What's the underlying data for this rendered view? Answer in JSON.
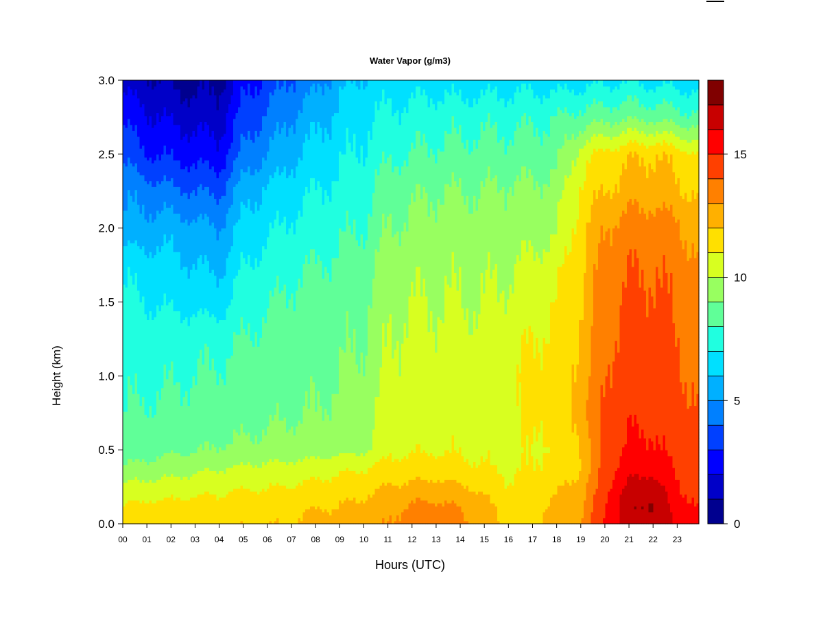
{
  "chart_data": {
    "type": "heatmap",
    "title": "Water Vapor (g/m3)",
    "xlabel": "Hours (UTC)",
    "ylabel": "Height (km)",
    "xlim": [
      0,
      23.9
    ],
    "ylim": [
      0,
      3.0
    ],
    "x_ticks": [
      "00",
      "01",
      "02",
      "03",
      "04",
      "05",
      "06",
      "07",
      "08",
      "09",
      "10",
      "11",
      "12",
      "13",
      "14",
      "15",
      "16",
      "17",
      "18",
      "19",
      "20",
      "21",
      "22",
      "23"
    ],
    "y_ticks": [
      "0.0",
      "0.5",
      "1.0",
      "1.5",
      "2.0",
      "2.5",
      "3.0"
    ],
    "colorbar": {
      "min": 0,
      "max": 18,
      "ticks": [
        "0",
        "5",
        "10",
        "15"
      ],
      "levels": [
        0,
        1,
        2,
        3,
        4,
        5,
        6,
        7,
        8,
        9,
        10,
        11,
        12,
        13,
        14,
        15,
        16,
        17,
        18
      ],
      "colors": [
        "#00008F",
        "#0000C8",
        "#0000FF",
        "#0040FF",
        "#0080FF",
        "#00B0FF",
        "#00E0FF",
        "#20FFE0",
        "#60FF98",
        "#98FF60",
        "#D8FF20",
        "#FFE000",
        "#FFB000",
        "#FF8000",
        "#FF4000",
        "#FF0000",
        "#C80000",
        "#800000"
      ]
    },
    "grid": {
      "hours": [
        0,
        1,
        2,
        3,
        4,
        5,
        6,
        7,
        8,
        9,
        10,
        11,
        12,
        13,
        14,
        15,
        16,
        17,
        18,
        19,
        20,
        21,
        22,
        23,
        23.9
      ],
      "heights": [
        0.0,
        0.1,
        0.2,
        0.3,
        0.4,
        0.5,
        0.75,
        1.0,
        1.25,
        1.5,
        1.75,
        2.0,
        2.25,
        2.5,
        2.75,
        3.0
      ],
      "values": [
        [
          11.8,
          11.8,
          11.8,
          11.8,
          11.8,
          11.9,
          11.9,
          12.0,
          12.3,
          12.4,
          12.6,
          13.0,
          13.4,
          13.5,
          13.3,
          12.6,
          11.8,
          11.9,
          12.4,
          13.0,
          15.2,
          16.5,
          16.8,
          15.6,
          15.2
        ],
        [
          11.2,
          11.4,
          11.4,
          11.5,
          11.5,
          11.6,
          11.7,
          11.8,
          12.0,
          12.1,
          12.3,
          12.8,
          13.2,
          13.3,
          13.0,
          12.3,
          11.6,
          11.8,
          12.3,
          12.9,
          15.0,
          16.8,
          17.2,
          15.4,
          15.0
        ],
        [
          10.5,
          10.7,
          10.8,
          10.9,
          11.0,
          11.2,
          11.2,
          11.3,
          11.6,
          11.7,
          11.9,
          12.3,
          12.7,
          12.8,
          12.5,
          12.0,
          11.2,
          11.5,
          12.0,
          12.6,
          14.8,
          16.6,
          17.0,
          15.2,
          14.8
        ],
        [
          9.8,
          10.0,
          10.1,
          10.3,
          10.4,
          10.6,
          10.7,
          10.8,
          11.0,
          11.2,
          11.4,
          11.8,
          11.9,
          12.0,
          11.8,
          11.5,
          11.0,
          11.2,
          11.6,
          12.2,
          14.6,
          16.0,
          16.2,
          15.0,
          14.6
        ],
        [
          9.0,
          9.2,
          9.4,
          9.6,
          9.8,
          10.0,
          10.1,
          10.2,
          10.4,
          10.6,
          10.8,
          11.2,
          11.3,
          11.4,
          11.2,
          11.0,
          10.8,
          11.0,
          11.3,
          12.0,
          14.4,
          15.6,
          15.6,
          14.8,
          14.4
        ],
        [
          8.4,
          8.6,
          8.8,
          8.9,
          9.1,
          9.2,
          9.3,
          9.4,
          9.5,
          9.6,
          9.8,
          10.8,
          10.9,
          10.9,
          10.9,
          10.8,
          10.7,
          10.9,
          11.2,
          12.2,
          14.2,
          15.2,
          15.2,
          14.6,
          14.2
        ],
        [
          8.0,
          8.1,
          8.2,
          8.3,
          8.5,
          8.6,
          8.8,
          8.9,
          9.0,
          9.2,
          9.5,
          10.4,
          10.5,
          10.6,
          10.6,
          10.5,
          10.7,
          11.2,
          11.4,
          12.5,
          14.2,
          14.8,
          14.8,
          14.4,
          14.0
        ],
        [
          7.8,
          7.8,
          7.9,
          8.0,
          8.1,
          8.3,
          8.5,
          8.7,
          8.8,
          9.0,
          9.2,
          10.2,
          10.3,
          10.4,
          10.5,
          10.4,
          10.8,
          11.2,
          11.4,
          12.4,
          14.0,
          14.6,
          14.6,
          14.2,
          13.8
        ],
        [
          7.5,
          7.5,
          7.6,
          7.7,
          7.8,
          8.0,
          8.3,
          8.5,
          8.6,
          8.8,
          9.0,
          10.0,
          10.2,
          10.2,
          10.3,
          10.2,
          10.6,
          11.0,
          11.2,
          12.2,
          13.8,
          14.4,
          14.4,
          14.0,
          13.6
        ],
        [
          7.2,
          7.0,
          6.8,
          6.6,
          6.5,
          7.6,
          7.9,
          8.2,
          8.4,
          8.6,
          8.8,
          9.8,
          10.0,
          10.0,
          10.0,
          10.0,
          10.2,
          10.6,
          11.0,
          12.0,
          13.6,
          14.2,
          14.2,
          13.8,
          13.4
        ],
        [
          6.8,
          6.5,
          6.3,
          6.0,
          5.8,
          7.0,
          7.4,
          7.8,
          8.0,
          8.2,
          8.5,
          9.5,
          9.7,
          9.8,
          9.8,
          9.8,
          9.9,
          10.2,
          10.6,
          11.8,
          13.4,
          13.9,
          14.0,
          13.6,
          13.0
        ],
        [
          5.2,
          5.4,
          5.6,
          5.3,
          5.0,
          6.3,
          6.8,
          7.2,
          7.5,
          7.8,
          8.0,
          9.0,
          9.2,
          9.4,
          9.5,
          9.4,
          9.5,
          9.6,
          9.8,
          11.6,
          13.0,
          13.5,
          13.6,
          13.2,
          12.6
        ],
        [
          4.8,
          4.6,
          4.2,
          4.0,
          3.8,
          5.6,
          6.2,
          6.6,
          7.0,
          7.3,
          7.6,
          8.6,
          8.8,
          9.0,
          9.0,
          9.0,
          9.2,
          9.2,
          9.4,
          11.2,
          12.0,
          12.5,
          12.6,
          12.2,
          11.8
        ],
        [
          3.8,
          3.0,
          2.8,
          2.6,
          2.4,
          4.2,
          5.0,
          5.8,
          6.3,
          6.8,
          7.2,
          7.8,
          8.0,
          8.2,
          8.3,
          8.4,
          8.4,
          8.5,
          8.6,
          10.5,
          11.4,
          11.8,
          12.0,
          11.6,
          11.0
        ],
        [
          2.8,
          2.2,
          1.8,
          1.6,
          1.5,
          3.4,
          4.2,
          5.0,
          5.7,
          6.3,
          6.8,
          7.2,
          7.4,
          7.6,
          7.6,
          7.7,
          7.7,
          7.8,
          8.0,
          8.4,
          8.6,
          8.8,
          8.7,
          8.4,
          8.2
        ],
        [
          1.6,
          1.2,
          0.8,
          0.6,
          0.8,
          2.6,
          3.3,
          4.1,
          4.6,
          5.6,
          6.2,
          6.5,
          6.5,
          6.6,
          6.4,
          6.5,
          6.6,
          6.6,
          6.5,
          6.6,
          6.8,
          6.9,
          6.7,
          6.6,
          6.5
        ]
      ]
    }
  }
}
